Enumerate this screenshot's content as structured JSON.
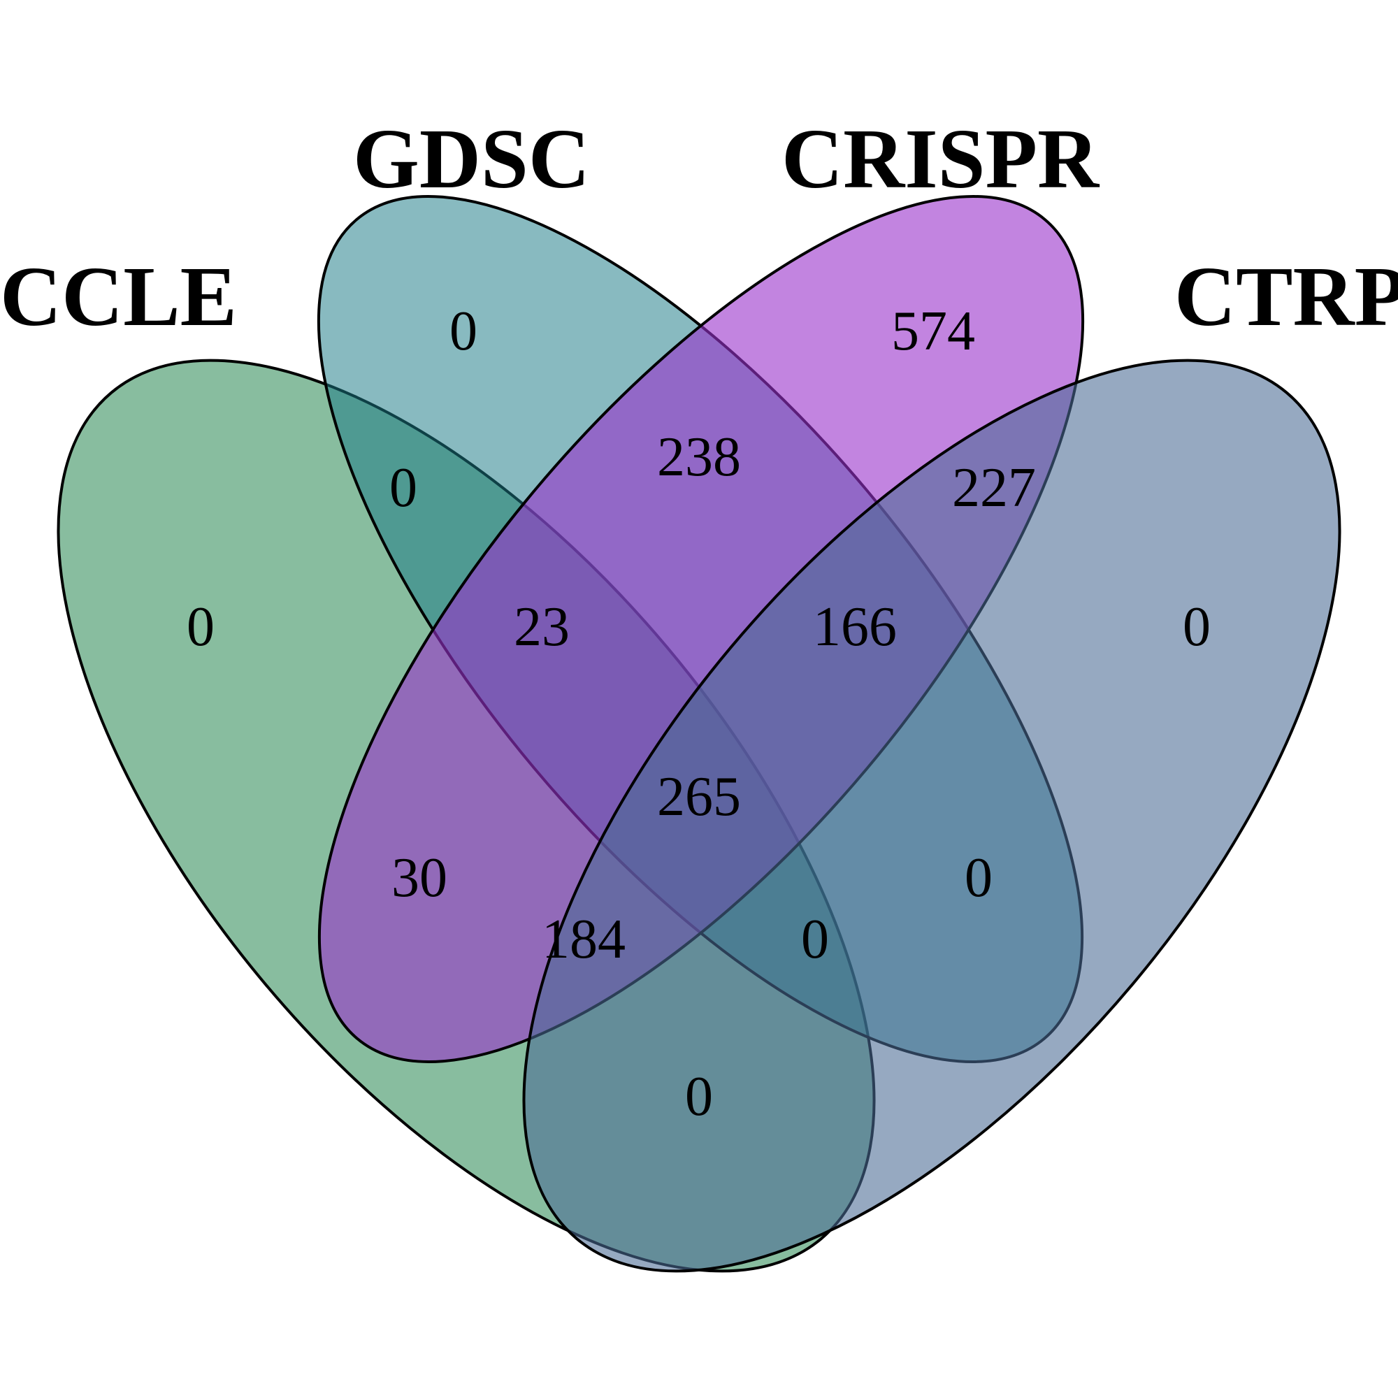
{
  "sets": [
    {
      "id": "ccle",
      "name": "CCLE",
      "color": "#2E8B57"
    },
    {
      "id": "gdsc",
      "name": "GDSC",
      "color": "#1B7A87"
    },
    {
      "id": "crispr",
      "name": "CRISPR",
      "color": "#9932CC"
    },
    {
      "id": "ctrp",
      "name": "CTRP",
      "color": "#4A6A94"
    }
  ],
  "regions": {
    "ccle_only": "0",
    "gdsc_only": "0",
    "crispr_only": "574",
    "ctrp_only": "0",
    "ccle_gdsc": "0",
    "gdsc_crispr": "238",
    "crispr_ctrp": "227",
    "ccle_gdsc_crispr": "23",
    "gdsc_crispr_ctrp": "166",
    "all_four": "265",
    "ccle_crispr": "30",
    "ccle_crispr_ctrp": "184",
    "ccle_gdsc_ctrp": "0",
    "gdsc_ctrp": "0",
    "ccle_ctrp": "0"
  }
}
